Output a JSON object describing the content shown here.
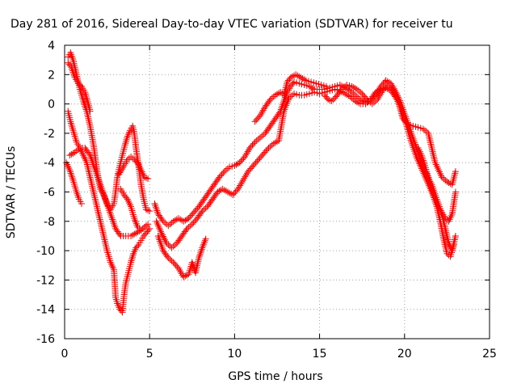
{
  "chart_data": {
    "type": "scatter",
    "title": "Day 281 of 2016, Sidereal Day-to-day VTEC variation (SDTVAR) for receiver tu",
    "xlabel": "GPS time / hours",
    "ylabel": "SDTVAR / TECUs",
    "xlim": [
      0,
      25
    ],
    "ylim": [
      -16,
      4
    ],
    "xticks": [
      0,
      5,
      10,
      15,
      20,
      25
    ],
    "yticks": [
      -16,
      -14,
      -12,
      -10,
      -8,
      -6,
      -4,
      -2,
      0,
      2,
      4
    ],
    "grid": true,
    "marker": "plus",
    "color": "#ff0000",
    "series": [
      {
        "points": [
          [
            0.2,
            3.2
          ],
          [
            0.35,
            3.5
          ],
          [
            0.5,
            3.0
          ],
          [
            0.7,
            2.0
          ],
          [
            0.9,
            1.0
          ],
          [
            1.1,
            0.2
          ],
          [
            1.3,
            -0.5
          ],
          [
            1.5,
            -1.5
          ],
          [
            1.7,
            -2.8
          ],
          [
            1.9,
            -4.5
          ],
          [
            2.1,
            -5.8
          ],
          [
            2.3,
            -6.2
          ],
          [
            2.5,
            -6.8
          ],
          [
            2.7,
            -7.2
          ],
          [
            2.9,
            -6.8
          ],
          [
            3.0,
            -6.0
          ],
          [
            3.1,
            -5.0
          ],
          [
            3.25,
            -4.2
          ],
          [
            3.4,
            -3.5
          ],
          [
            3.55,
            -2.8
          ],
          [
            3.7,
            -2.2
          ],
          [
            3.85,
            -1.8
          ],
          [
            4.0,
            -1.5
          ],
          [
            4.1,
            -2.0
          ],
          [
            4.2,
            -3.0
          ],
          [
            4.35,
            -4.2
          ],
          [
            4.5,
            -5.5
          ],
          [
            4.65,
            -6.5
          ],
          [
            4.8,
            -7.2
          ],
          [
            5.0,
            -7.3
          ]
        ]
      },
      {
        "points": [
          [
            0.2,
            -0.5
          ],
          [
            0.35,
            -1.2
          ],
          [
            0.5,
            -1.8
          ],
          [
            0.7,
            -2.6
          ],
          [
            0.9,
            -3.0
          ],
          [
            1.1,
            -3.5
          ],
          [
            1.3,
            -4.0
          ],
          [
            1.5,
            -5.0
          ],
          [
            1.7,
            -6.0
          ],
          [
            1.9,
            -7.0
          ],
          [
            2.1,
            -8.0
          ],
          [
            2.3,
            -9.0
          ],
          [
            2.5,
            -10.0
          ],
          [
            2.7,
            -10.8
          ],
          [
            2.9,
            -11.3
          ],
          [
            3.0,
            -13.2
          ],
          [
            3.1,
            -13.6
          ],
          [
            3.25,
            -14.0
          ],
          [
            3.4,
            -14.2
          ],
          [
            3.5,
            -13.0
          ],
          [
            3.6,
            -12.2
          ],
          [
            3.75,
            -11.5
          ],
          [
            3.9,
            -10.8
          ],
          [
            4.05,
            -10.2
          ],
          [
            4.2,
            -9.8
          ],
          [
            4.35,
            -9.6
          ],
          [
            4.5,
            -9.3
          ],
          [
            4.65,
            -9.0
          ],
          [
            4.8,
            -8.8
          ],
          [
            5.0,
            -8.5
          ]
        ]
      },
      {
        "points": [
          [
            0.2,
            2.8
          ],
          [
            0.4,
            2.5
          ],
          [
            0.6,
            1.8
          ],
          [
            0.8,
            1.4
          ],
          [
            1.0,
            1.2
          ],
          [
            1.2,
            0.8
          ],
          [
            1.4,
            0.0
          ],
          [
            1.5,
            -0.5
          ]
        ]
      },
      {
        "points": [
          [
            0.1,
            -4.0
          ],
          [
            0.3,
            -4.5
          ],
          [
            0.5,
            -5.2
          ],
          [
            0.7,
            -6.0
          ],
          [
            0.85,
            -6.5
          ],
          [
            1.0,
            -6.8
          ]
        ]
      },
      {
        "points": [
          [
            0.3,
            -3.5
          ],
          [
            0.6,
            -3.3
          ],
          [
            0.9,
            -3.0
          ],
          [
            1.2,
            -3.0
          ],
          [
            1.5,
            -3.5
          ],
          [
            1.8,
            -4.5
          ],
          [
            2.1,
            -5.5
          ],
          [
            2.4,
            -6.5
          ],
          [
            2.7,
            -7.5
          ],
          [
            3.0,
            -8.5
          ],
          [
            3.3,
            -9.0
          ],
          [
            3.6,
            -9.0
          ],
          [
            3.9,
            -9.0
          ],
          [
            4.2,
            -8.8
          ],
          [
            4.5,
            -8.6
          ],
          [
            4.8,
            -8.3
          ]
        ]
      },
      {
        "points": [
          [
            3.2,
            -4.8
          ],
          [
            3.5,
            -4.2
          ],
          [
            3.7,
            -3.8
          ],
          [
            3.9,
            -3.6
          ],
          [
            4.1,
            -3.8
          ],
          [
            4.3,
            -4.0
          ],
          [
            4.5,
            -4.5
          ],
          [
            4.7,
            -5.0
          ],
          [
            4.9,
            -5.1
          ]
        ]
      },
      {
        "points": [
          [
            3.3,
            -5.8
          ],
          [
            3.5,
            -6.2
          ],
          [
            3.7,
            -6.5
          ],
          [
            3.9,
            -7.0
          ],
          [
            4.1,
            -7.8
          ],
          [
            4.3,
            -8.4
          ],
          [
            4.5,
            -8.6
          ],
          [
            4.7,
            -8.4
          ],
          [
            4.9,
            -8.2
          ]
        ]
      },
      {
        "points": [
          [
            5.3,
            -6.8
          ],
          [
            5.5,
            -7.5
          ],
          [
            5.8,
            -8.0
          ],
          [
            6.1,
            -8.3
          ],
          [
            6.4,
            -8.0
          ],
          [
            6.7,
            -7.8
          ],
          [
            7.0,
            -8.0
          ],
          [
            7.3,
            -7.8
          ],
          [
            7.6,
            -7.4
          ],
          [
            7.9,
            -7.0
          ],
          [
            8.2,
            -6.5
          ],
          [
            8.5,
            -6.0
          ],
          [
            8.8,
            -5.5
          ],
          [
            9.1,
            -5.0
          ],
          [
            9.4,
            -4.6
          ],
          [
            9.7,
            -4.3
          ],
          [
            10.0,
            -4.2
          ],
          [
            10.3,
            -4.0
          ],
          [
            10.6,
            -3.6
          ],
          [
            10.9,
            -3.0
          ],
          [
            11.2,
            -2.6
          ],
          [
            11.5,
            -2.3
          ],
          [
            11.8,
            -2.0
          ],
          [
            12.1,
            -1.5
          ],
          [
            12.4,
            -1.0
          ],
          [
            12.7,
            -0.5
          ],
          [
            12.9,
            0.2
          ],
          [
            13.1,
            0.8
          ],
          [
            13.3,
            1.2
          ],
          [
            13.5,
            1.5
          ],
          [
            13.8,
            1.4
          ],
          [
            14.1,
            1.3
          ],
          [
            14.4,
            1.2
          ],
          [
            14.7,
            1.0
          ],
          [
            15.0,
            1.0
          ],
          [
            15.3,
            1.0
          ],
          [
            15.6,
            1.1
          ],
          [
            15.9,
            1.2
          ],
          [
            16.2,
            1.3
          ],
          [
            16.5,
            1.1
          ],
          [
            16.8,
            0.9
          ],
          [
            17.1,
            0.6
          ],
          [
            17.4,
            0.3
          ],
          [
            17.7,
            0.1
          ],
          [
            18.0,
            0.2
          ],
          [
            18.3,
            0.6
          ],
          [
            18.6,
            1.2
          ],
          [
            18.9,
            1.6
          ],
          [
            19.2,
            1.4
          ],
          [
            19.5,
            0.8
          ],
          [
            19.8,
            0.0
          ],
          [
            20.1,
            -1.0
          ],
          [
            20.4,
            -2.0
          ],
          [
            20.7,
            -3.0
          ],
          [
            21.0,
            -4.0
          ],
          [
            21.3,
            -4.8
          ],
          [
            21.6,
            -5.5
          ],
          [
            21.9,
            -6.5
          ],
          [
            22.2,
            -7.5
          ],
          [
            22.4,
            -8.5
          ],
          [
            22.6,
            -9.5
          ],
          [
            22.8,
            -10.0
          ],
          [
            23.0,
            -9.0
          ]
        ]
      },
      {
        "points": [
          [
            5.4,
            -8.0
          ],
          [
            5.7,
            -8.8
          ],
          [
            6.0,
            -9.5
          ],
          [
            6.3,
            -9.8
          ],
          [
            6.6,
            -9.5
          ],
          [
            6.9,
            -9.0
          ],
          [
            7.2,
            -8.5
          ],
          [
            7.5,
            -8.2
          ],
          [
            7.8,
            -7.8
          ],
          [
            8.1,
            -7.3
          ],
          [
            8.4,
            -7.0
          ],
          [
            8.7,
            -6.5
          ],
          [
            9.0,
            -6.0
          ],
          [
            9.3,
            -5.8
          ],
          [
            9.6,
            -6.0
          ],
          [
            9.9,
            -6.2
          ],
          [
            10.2,
            -5.8
          ],
          [
            10.5,
            -5.2
          ],
          [
            10.8,
            -4.6
          ],
          [
            11.1,
            -4.2
          ],
          [
            11.4,
            -3.8
          ],
          [
            11.7,
            -3.4
          ],
          [
            12.0,
            -3.0
          ],
          [
            12.3,
            -2.7
          ],
          [
            12.6,
            -2.5
          ],
          [
            12.9,
            -0.5
          ],
          [
            13.2,
            0.4
          ],
          [
            13.5,
            0.7
          ],
          [
            13.8,
            0.6
          ],
          [
            14.1,
            0.6
          ],
          [
            14.4,
            0.7
          ],
          [
            14.7,
            0.8
          ],
          [
            15.0,
            0.7
          ],
          [
            15.3,
            0.8
          ],
          [
            15.6,
            0.9
          ],
          [
            15.9,
            1.0
          ],
          [
            16.2,
            0.9
          ],
          [
            16.5,
            0.7
          ],
          [
            16.8,
            0.5
          ],
          [
            17.1,
            0.2
          ],
          [
            17.4,
            0.0
          ],
          [
            17.7,
            0.0
          ],
          [
            18.0,
            0.3
          ],
          [
            18.3,
            0.8
          ],
          [
            18.6,
            1.0
          ],
          [
            18.9,
            1.1
          ],
          [
            19.2,
            0.9
          ],
          [
            19.5,
            0.4
          ],
          [
            19.8,
            -0.3
          ],
          [
            20.1,
            -1.4
          ],
          [
            20.4,
            -2.6
          ],
          [
            20.7,
            -3.6
          ],
          [
            21.0,
            -4.4
          ],
          [
            21.3,
            -5.2
          ],
          [
            21.6,
            -6.0
          ],
          [
            21.9,
            -7.0
          ],
          [
            22.1,
            -8.0
          ],
          [
            22.3,
            -9.2
          ],
          [
            22.5,
            -10.2
          ],
          [
            22.7,
            -10.4
          ],
          [
            22.9,
            -9.6
          ]
        ]
      },
      {
        "points": [
          [
            5.5,
            -9.0
          ],
          [
            5.8,
            -10.0
          ],
          [
            6.1,
            -10.5
          ],
          [
            6.4,
            -10.8
          ],
          [
            6.7,
            -11.2
          ],
          [
            7.0,
            -11.8
          ],
          [
            7.3,
            -11.6
          ],
          [
            7.5,
            -10.8
          ],
          [
            7.7,
            -11.5
          ],
          [
            7.9,
            -10.5
          ],
          [
            8.1,
            -9.8
          ],
          [
            8.3,
            -9.2
          ]
        ]
      },
      {
        "points": [
          [
            11.2,
            -1.2
          ],
          [
            11.5,
            -0.8
          ],
          [
            11.8,
            -0.2
          ],
          [
            12.1,
            0.3
          ],
          [
            12.4,
            0.6
          ],
          [
            12.7,
            0.8
          ],
          [
            12.9,
            0.6
          ],
          [
            13.1,
            1.5
          ],
          [
            13.3,
            1.8
          ],
          [
            13.6,
            2.0
          ],
          [
            13.9,
            1.8
          ],
          [
            14.2,
            1.6
          ],
          [
            14.5,
            1.5
          ],
          [
            14.8,
            1.4
          ],
          [
            15.1,
            1.3
          ],
          [
            15.4,
            1.2
          ]
        ]
      },
      {
        "points": [
          [
            15.3,
            0.6
          ],
          [
            15.5,
            0.3
          ],
          [
            15.7,
            0.2
          ],
          [
            15.9,
            0.4
          ],
          [
            16.1,
            0.7
          ],
          [
            16.3,
            1.0
          ],
          [
            16.6,
            1.3
          ],
          [
            16.9,
            1.2
          ],
          [
            17.2,
            1.0
          ],
          [
            17.5,
            0.7
          ],
          [
            17.8,
            0.3
          ],
          [
            18.1,
            0.0
          ],
          [
            18.4,
            0.3
          ],
          [
            18.7,
            0.9
          ],
          [
            19.0,
            1.3
          ],
          [
            19.3,
            1.0
          ],
          [
            19.6,
            0.3
          ],
          [
            19.9,
            -1.0
          ],
          [
            20.2,
            -1.4
          ],
          [
            20.5,
            -1.5
          ],
          [
            20.8,
            -1.6
          ],
          [
            21.1,
            -1.7
          ],
          [
            21.4,
            -2.0
          ],
          [
            21.6,
            -3.0
          ],
          [
            21.8,
            -4.0
          ],
          [
            22.0,
            -4.5
          ],
          [
            22.2,
            -5.0
          ],
          [
            22.5,
            -5.3
          ],
          [
            22.8,
            -5.5
          ],
          [
            23.0,
            -4.6
          ]
        ]
      },
      {
        "points": [
          [
            20.8,
            -3.0
          ],
          [
            21.0,
            -3.5
          ],
          [
            21.2,
            -4.2
          ],
          [
            21.4,
            -5.0
          ],
          [
            21.6,
            -5.8
          ],
          [
            21.8,
            -6.5
          ],
          [
            22.0,
            -7.0
          ],
          [
            22.2,
            -7.4
          ],
          [
            22.4,
            -7.8
          ],
          [
            22.6,
            -8.0
          ],
          [
            22.8,
            -7.5
          ],
          [
            23.0,
            -6.0
          ]
        ]
      }
    ]
  }
}
